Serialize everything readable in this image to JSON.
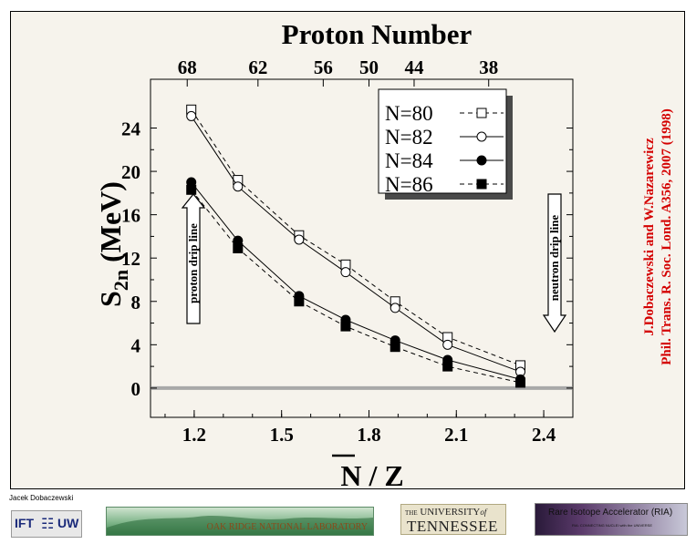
{
  "chart_data": {
    "type": "line",
    "title": "Proton Number",
    "xlabel": "N / Z",
    "ylabel_main": "S",
    "ylabel_sub": "2n",
    "ylabel_unit": "(MeV)",
    "xlim": [
      1.05,
      2.5
    ],
    "ylim": [
      -2.7,
      28.5
    ],
    "bottom_ticks": [
      "1.2",
      "1.5",
      "1.8",
      "2.1",
      "2.4"
    ],
    "bottom_tick_values": [
      1.2,
      1.5,
      1.8,
      2.1,
      2.4
    ],
    "top_ticks": [
      "68",
      "62",
      "56",
      "50",
      "44",
      "38"
    ],
    "top_tick_values": [
      1.176,
      1.419,
      1.643,
      1.8,
      1.955,
      2.211
    ],
    "y_ticks": [
      "0",
      "4",
      "8",
      "12",
      "16",
      "20",
      "24"
    ],
    "y_tick_values": [
      0,
      4,
      8,
      12,
      16,
      20,
      24
    ],
    "zero_line": 0,
    "legend_position": "top-right",
    "series": [
      {
        "name": "N=80",
        "marker": "open-square",
        "dash": true,
        "x": [
          1.19,
          1.35,
          1.56,
          1.72,
          1.89,
          2.07,
          2.32
        ],
        "y": [
          25.7,
          19.2,
          14.1,
          11.4,
          8.0,
          4.7,
          2.1
        ]
      },
      {
        "name": "N=82",
        "marker": "open-circle",
        "dash": false,
        "x": [
          1.19,
          1.35,
          1.56,
          1.72,
          1.89,
          2.07,
          2.32
        ],
        "y": [
          25.1,
          18.6,
          13.7,
          10.7,
          7.4,
          4.0,
          1.5
        ]
      },
      {
        "name": "N=84",
        "marker": "filled-circle",
        "dash": false,
        "x": [
          1.19,
          1.35,
          1.56,
          1.72,
          1.89,
          2.07,
          2.32
        ],
        "y": [
          19.0,
          13.6,
          8.5,
          6.3,
          4.4,
          2.6,
          0.8
        ]
      },
      {
        "name": "N=86",
        "marker": "filled-square",
        "dash": true,
        "x": [
          1.19,
          1.35,
          1.56,
          1.72,
          1.89,
          2.07,
          2.32
        ],
        "y": [
          18.3,
          12.9,
          8.0,
          5.7,
          3.8,
          2.0,
          0.5
        ]
      }
    ],
    "annotations": {
      "proton_drip": "proton drip line",
      "neutron_drip": "neutron drip line"
    }
  },
  "citation": {
    "line1": "J.Dobaczewski and W.Nazarewicz",
    "line2": "Phil. Trans. R. Soc. Lond. A356, 2007 (1998)"
  },
  "footer": {
    "author": "Jacek Dobaczewski",
    "ift": "IFT",
    "uw": "UW",
    "ornl": "OAK RIDGE NATIONAL LABORATORY",
    "ut_the": "THE",
    "ut_university": "UNIVERSITY",
    "ut_of": "of",
    "ut_tennessee": "TENNESSEE",
    "ria_title": "Rare Isotope Accelerator (RIA)",
    "ria_sub": "RIA: CONNECTING NUCLEI with the UNIVERSE"
  },
  "colors": {
    "citation": "#d40000",
    "slide_bg": "#f6f3ec",
    "zero_line": "#a8a8a8"
  }
}
